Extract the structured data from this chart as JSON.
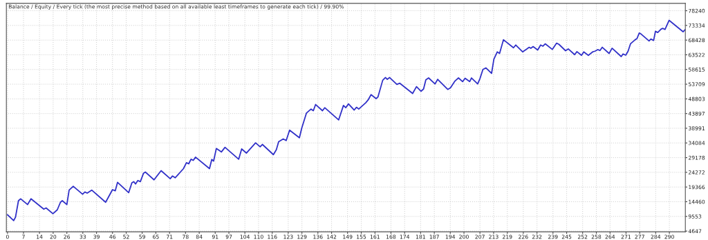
{
  "chart_data": {
    "type": "line",
    "title": "Balance / Equity / Every tick (the most precise method based on all available least timeframes to generate each tick) / 99.90%",
    "x": [
      0,
      2.7,
      3.5,
      4.8,
      5.8,
      8.8,
      10.3,
      15.9,
      16.9,
      19.9,
      21.8,
      23.2,
      24,
      26,
      27,
      28.8,
      32.9,
      33.9,
      34.9,
      36.9,
      43,
      46,
      47.2,
      48.2,
      53.1,
      54.5,
      55.3,
      56.1,
      57.1,
      58.2,
      59.6,
      60.4,
      64.2,
      67.3,
      71.3,
      72.3,
      73.5,
      77.1,
      78.4,
      79.4,
      80.4,
      81.4,
      82.4,
      88.5,
      89.5,
      90.3,
      91.5,
      93.7,
      95.3,
      101.3,
      102.6,
      104.7,
      108.7,
      110.7,
      111.7,
      116.5,
      117.8,
      118.8,
      120.8,
      122.1,
      123.6,
      127.9,
      128.9,
      131,
      133,
      134,
      135,
      138,
      139,
      145.1,
      147.2,
      148.2,
      149.4,
      151.9,
      152.9,
      153.9,
      157,
      158,
      159.3,
      161.5,
      162.3,
      164.4,
      165.6,
      166.4,
      167.4,
      170.6,
      171.9,
      177.5,
      179.2,
      181.2,
      182.3,
      183.3,
      184.5,
      187.3,
      188.5,
      192.9,
      194.1,
      196.1,
      197.6,
      199.4,
      200.5,
      202.5,
      203.3,
      206,
      207,
      208.3,
      209.6,
      212.1,
      213.1,
      214.6,
      215.6,
      217.3,
      221.7,
      222.7,
      225.7,
      228.6,
      229.3,
      230.3,
      232.3,
      233.6,
      234.6,
      235.6,
      238.7,
      240.6,
      241.6,
      244.5,
      245.7,
      248.5,
      249.5,
      251.5,
      252.5,
      254.5,
      256.4,
      257.4,
      258.6,
      259.6,
      260.6,
      263.6,
      264.9,
      268.9,
      269.7,
      270.9,
      271.9,
      273,
      275,
      275.8,
      276.8,
      277.6,
      281.1,
      281.9,
      283.1,
      283.9,
      284.9,
      286.4,
      287.1,
      288.1,
      289.9,
      296,
      297
    ],
    "series": [
      {
        "color": "#3030c8",
        "values": [
          10080,
          8155,
          9300,
          14800,
          15420,
          13520,
          15420,
          11980,
          12370,
          10450,
          11750,
          14280,
          14800,
          13520,
          18340,
          19620,
          16960,
          17720,
          17330,
          18340,
          14280,
          18480,
          18100,
          20930,
          17490,
          20770,
          21160,
          20400,
          21550,
          21160,
          23980,
          24370,
          21780,
          24830,
          22150,
          23060,
          22460,
          25510,
          27500,
          27120,
          28650,
          28260,
          29340,
          25510,
          28560,
          28030,
          32230,
          31080,
          32620,
          28650,
          32080,
          30700,
          34120,
          32810,
          33580,
          30180,
          31860,
          34500,
          35420,
          34890,
          38350,
          35830,
          38970,
          44090,
          45390,
          44850,
          46920,
          44850,
          45850,
          41790,
          46610,
          45850,
          47130,
          45080,
          45990,
          45400,
          47530,
          48440,
          50210,
          48900,
          49430,
          55020,
          55940,
          55320,
          55940,
          53650,
          54030,
          50600,
          52890,
          51360,
          52120,
          55170,
          55790,
          53800,
          55320,
          51960,
          52500,
          54800,
          55790,
          54570,
          55670,
          54570,
          55790,
          53800,
          55550,
          58600,
          59150,
          57310,
          62060,
          64500,
          63970,
          68550,
          65870,
          66790,
          64500,
          66030,
          65710,
          66260,
          65110,
          66790,
          66400,
          67180,
          65320,
          67410,
          67020,
          64890,
          65490,
          63580,
          64570,
          63350,
          64500,
          63350,
          64500,
          64720,
          65250,
          64950,
          66030,
          63970,
          65720,
          62940,
          63790,
          63400,
          64720,
          67240,
          68550,
          68920,
          70800,
          70460,
          68160,
          68780,
          68320,
          71370,
          70980,
          72130,
          72360,
          71990,
          75040,
          71220,
          71990
        ]
      }
    ],
    "xlim": [
      -0.5,
      297
    ],
    "xticks": [
      0,
      7,
      14,
      20,
      26,
      33,
      39,
      46,
      52,
      59,
      65,
      71,
      78,
      84,
      91,
      97,
      104,
      110,
      116,
      123,
      129,
      136,
      142,
      149,
      155,
      161,
      168,
      174,
      181,
      187,
      194,
      200,
      207,
      213,
      219,
      226,
      232,
      239,
      245,
      252,
      258,
      264,
      271,
      277,
      284,
      290
    ],
    "ylim": [
      4400,
      80700
    ],
    "yticks": [
      4647,
      9553,
      14460,
      19366,
      24272,
      29178,
      34084,
      38991,
      43897,
      48803,
      53709,
      58615,
      63522,
      68428,
      73334,
      78240
    ],
    "grid": true,
    "marker": "none",
    "line_style": "solid"
  }
}
